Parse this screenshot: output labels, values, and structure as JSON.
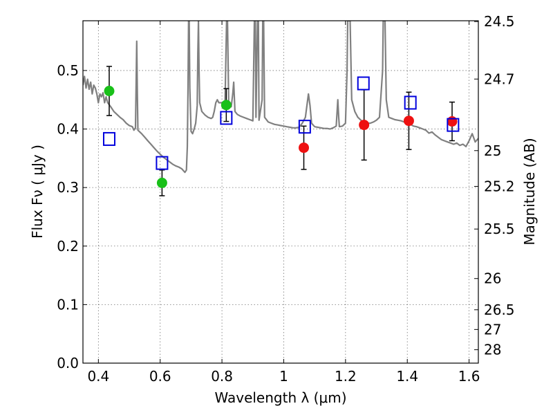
{
  "chart_data": {
    "type": "scatter",
    "title": "",
    "xlabel": "Wavelength  λ (μm)",
    "ylabel": "Flux  Fν  ( μJy )",
    "ylabel_right": "Magnitude (AB)",
    "xlim": [
      0.35,
      1.63
    ],
    "ylim": [
      0.0,
      0.585
    ],
    "grid": true,
    "x_ticks": [
      0.4,
      0.6,
      0.8,
      1.0,
      1.2,
      1.4,
      1.6
    ],
    "x_tick_labels": [
      "0.4",
      "0.6",
      "0.8",
      "1",
      "1.2",
      "1.4",
      "1.6"
    ],
    "y_ticks": [
      0.0,
      0.1,
      0.2,
      0.3,
      0.4,
      0.5
    ],
    "y_tick_labels": [
      "0.0",
      "0.1",
      "0.2",
      "0.3",
      "0.4",
      "0.5"
    ],
    "right_ticks": [
      {
        "flux": 0.5836,
        "label": "24.5"
      },
      {
        "flux": 0.4854,
        "label": "24.7"
      },
      {
        "flux": 0.3631,
        "label": "25"
      },
      {
        "flux": 0.302,
        "label": "25.2"
      },
      {
        "flux": 0.2291,
        "label": "25.5"
      },
      {
        "flux": 0.1445,
        "label": "26"
      },
      {
        "flux": 0.0912,
        "label": "26.5"
      },
      {
        "flux": 0.0575,
        "label": "27"
      },
      {
        "flux": 0.0229,
        "label": "28"
      }
    ],
    "series": [
      {
        "marker": "circle",
        "color": "#19c019",
        "points": [
          {
            "x": 0.435,
            "y": 0.465,
            "err": 0.042
          },
          {
            "x": 0.606,
            "y": 0.308,
            "err": 0.022
          },
          {
            "x": 0.814,
            "y": 0.441,
            "err": 0.028
          }
        ]
      },
      {
        "marker": "circle",
        "color": "#ee1111",
        "points": [
          {
            "x": 1.065,
            "y": 0.368,
            "err": 0.037
          },
          {
            "x": 1.26,
            "y": 0.407,
            "err": 0.06
          },
          {
            "x": 1.405,
            "y": 0.414,
            "err": 0.049
          },
          {
            "x": 1.545,
            "y": 0.413,
            "err": 0.033
          }
        ]
      },
      {
        "marker": "square",
        "color": "#0000dd",
        "points": [
          {
            "x": 0.435,
            "y": 0.383
          },
          {
            "x": 0.606,
            "y": 0.342
          },
          {
            "x": 0.814,
            "y": 0.419
          },
          {
            "x": 1.068,
            "y": 0.404
          },
          {
            "x": 1.258,
            "y": 0.478
          },
          {
            "x": 1.41,
            "y": 0.445
          },
          {
            "x": 1.548,
            "y": 0.407
          }
        ]
      }
    ],
    "spectrum": {
      "color": "#808080",
      "points": [
        [
          0.35,
          0.475
        ],
        [
          0.355,
          0.49
        ],
        [
          0.36,
          0.47
        ],
        [
          0.365,
          0.485
        ],
        [
          0.37,
          0.468
        ],
        [
          0.375,
          0.48
        ],
        [
          0.38,
          0.46
        ],
        [
          0.385,
          0.475
        ],
        [
          0.39,
          0.47
        ],
        [
          0.395,
          0.46
        ],
        [
          0.4,
          0.445
        ],
        [
          0.405,
          0.46
        ],
        [
          0.41,
          0.455
        ],
        [
          0.415,
          0.462
        ],
        [
          0.42,
          0.445
        ],
        [
          0.425,
          0.455
        ],
        [
          0.43,
          0.445
        ],
        [
          0.44,
          0.438
        ],
        [
          0.45,
          0.43
        ],
        [
          0.46,
          0.425
        ],
        [
          0.47,
          0.42
        ],
        [
          0.48,
          0.416
        ],
        [
          0.49,
          0.41
        ],
        [
          0.5,
          0.406
        ],
        [
          0.51,
          0.404
        ],
        [
          0.515,
          0.398
        ],
        [
          0.52,
          0.402
        ],
        [
          0.522,
          0.475
        ],
        [
          0.524,
          0.55
        ],
        [
          0.526,
          0.46
        ],
        [
          0.528,
          0.398
        ],
        [
          0.54,
          0.392
        ],
        [
          0.55,
          0.386
        ],
        [
          0.56,
          0.38
        ],
        [
          0.57,
          0.374
        ],
        [
          0.58,
          0.368
        ],
        [
          0.59,
          0.362
        ],
        [
          0.6,
          0.357
        ],
        [
          0.61,
          0.352
        ],
        [
          0.62,
          0.348
        ],
        [
          0.63,
          0.344
        ],
        [
          0.64,
          0.34
        ],
        [
          0.65,
          0.337
        ],
        [
          0.66,
          0.335
        ],
        [
          0.67,
          0.332
        ],
        [
          0.68,
          0.326
        ],
        [
          0.685,
          0.33
        ],
        [
          0.688,
          0.37
        ],
        [
          0.69,
          0.46
        ],
        [
          0.692,
          0.585
        ],
        [
          0.694,
          0.585
        ],
        [
          0.696,
          0.47
        ],
        [
          0.7,
          0.396
        ],
        [
          0.705,
          0.392
        ],
        [
          0.71,
          0.4
        ],
        [
          0.715,
          0.41
        ],
        [
          0.72,
          0.44
        ],
        [
          0.722,
          0.53
        ],
        [
          0.724,
          0.585
        ],
        [
          0.726,
          0.5
        ],
        [
          0.728,
          0.445
        ],
        [
          0.735,
          0.43
        ],
        [
          0.745,
          0.424
        ],
        [
          0.755,
          0.42
        ],
        [
          0.765,
          0.418
        ],
        [
          0.77,
          0.42
        ],
        [
          0.775,
          0.43
        ],
        [
          0.78,
          0.445
        ],
        [
          0.785,
          0.45
        ],
        [
          0.79,
          0.445
        ],
        [
          0.8,
          0.445
        ],
        [
          0.81,
          0.448
        ],
        [
          0.815,
          0.585
        ],
        [
          0.818,
          0.585
        ],
        [
          0.822,
          0.44
        ],
        [
          0.83,
          0.438
        ],
        [
          0.835,
          0.46
        ],
        [
          0.838,
          0.48
        ],
        [
          0.842,
          0.43
        ],
        [
          0.85,
          0.425
        ],
        [
          0.86,
          0.422
        ],
        [
          0.87,
          0.42
        ],
        [
          0.88,
          0.418
        ],
        [
          0.89,
          0.416
        ],
        [
          0.9,
          0.414
        ],
        [
          0.905,
          0.585
        ],
        [
          0.908,
          0.585
        ],
        [
          0.91,
          0.42
        ],
        [
          0.915,
          0.585
        ],
        [
          0.918,
          0.585
        ],
        [
          0.92,
          0.415
        ],
        [
          0.93,
          0.45
        ],
        [
          0.932,
          0.585
        ],
        [
          0.935,
          0.585
        ],
        [
          0.938,
          0.42
        ],
        [
          0.95,
          0.412
        ],
        [
          0.96,
          0.41
        ],
        [
          0.97,
          0.408
        ],
        [
          0.98,
          0.407
        ],
        [
          0.99,
          0.406
        ],
        [
          1.0,
          0.405
        ],
        [
          1.01,
          0.404
        ],
        [
          1.02,
          0.403
        ],
        [
          1.03,
          0.402
        ],
        [
          1.04,
          0.402
        ],
        [
          1.05,
          0.403
        ],
        [
          1.06,
          0.41
        ],
        [
          1.07,
          0.42
        ],
        [
          1.075,
          0.44
        ],
        [
          1.08,
          0.46
        ],
        [
          1.085,
          0.44
        ],
        [
          1.09,
          0.41
        ],
        [
          1.1,
          0.404
        ],
        [
          1.11,
          0.403
        ],
        [
          1.12,
          0.402
        ],
        [
          1.13,
          0.401
        ],
        [
          1.14,
          0.401
        ],
        [
          1.15,
          0.4
        ],
        [
          1.16,
          0.402
        ],
        [
          1.17,
          0.405
        ],
        [
          1.175,
          0.45
        ],
        [
          1.178,
          0.42
        ],
        [
          1.18,
          0.404
        ],
        [
          1.19,
          0.405
        ],
        [
          1.2,
          0.41
        ],
        [
          1.205,
          0.5
        ],
        [
          1.207,
          0.585
        ],
        [
          1.215,
          0.585
        ],
        [
          1.22,
          0.45
        ],
        [
          1.23,
          0.43
        ],
        [
          1.24,
          0.42
        ],
        [
          1.25,
          0.415
        ],
        [
          1.26,
          0.41
        ],
        [
          1.27,
          0.41
        ],
        [
          1.28,
          0.41
        ],
        [
          1.29,
          0.412
        ],
        [
          1.3,
          0.415
        ],
        [
          1.31,
          0.42
        ],
        [
          1.32,
          0.5
        ],
        [
          1.322,
          0.585
        ],
        [
          1.328,
          0.585
        ],
        [
          1.332,
          0.45
        ],
        [
          1.34,
          0.42
        ],
        [
          1.35,
          0.418
        ],
        [
          1.36,
          0.416
        ],
        [
          1.37,
          0.415
        ],
        [
          1.38,
          0.414
        ],
        [
          1.39,
          0.412
        ],
        [
          1.4,
          0.41
        ],
        [
          1.41,
          0.408
        ],
        [
          1.42,
          0.405
        ],
        [
          1.43,
          0.404
        ],
        [
          1.44,
          0.402
        ],
        [
          1.45,
          0.4
        ],
        [
          1.46,
          0.398
        ],
        [
          1.47,
          0.393
        ],
        [
          1.48,
          0.395
        ],
        [
          1.49,
          0.39
        ],
        [
          1.5,
          0.386
        ],
        [
          1.51,
          0.382
        ],
        [
          1.52,
          0.38
        ],
        [
          1.53,
          0.378
        ],
        [
          1.54,
          0.376
        ],
        [
          1.55,
          0.374
        ],
        [
          1.56,
          0.376
        ],
        [
          1.57,
          0.372
        ],
        [
          1.58,
          0.374
        ],
        [
          1.59,
          0.37
        ],
        [
          1.6,
          0.38
        ],
        [
          1.61,
          0.392
        ],
        [
          1.62,
          0.378
        ],
        [
          1.63,
          0.384
        ]
      ]
    }
  }
}
